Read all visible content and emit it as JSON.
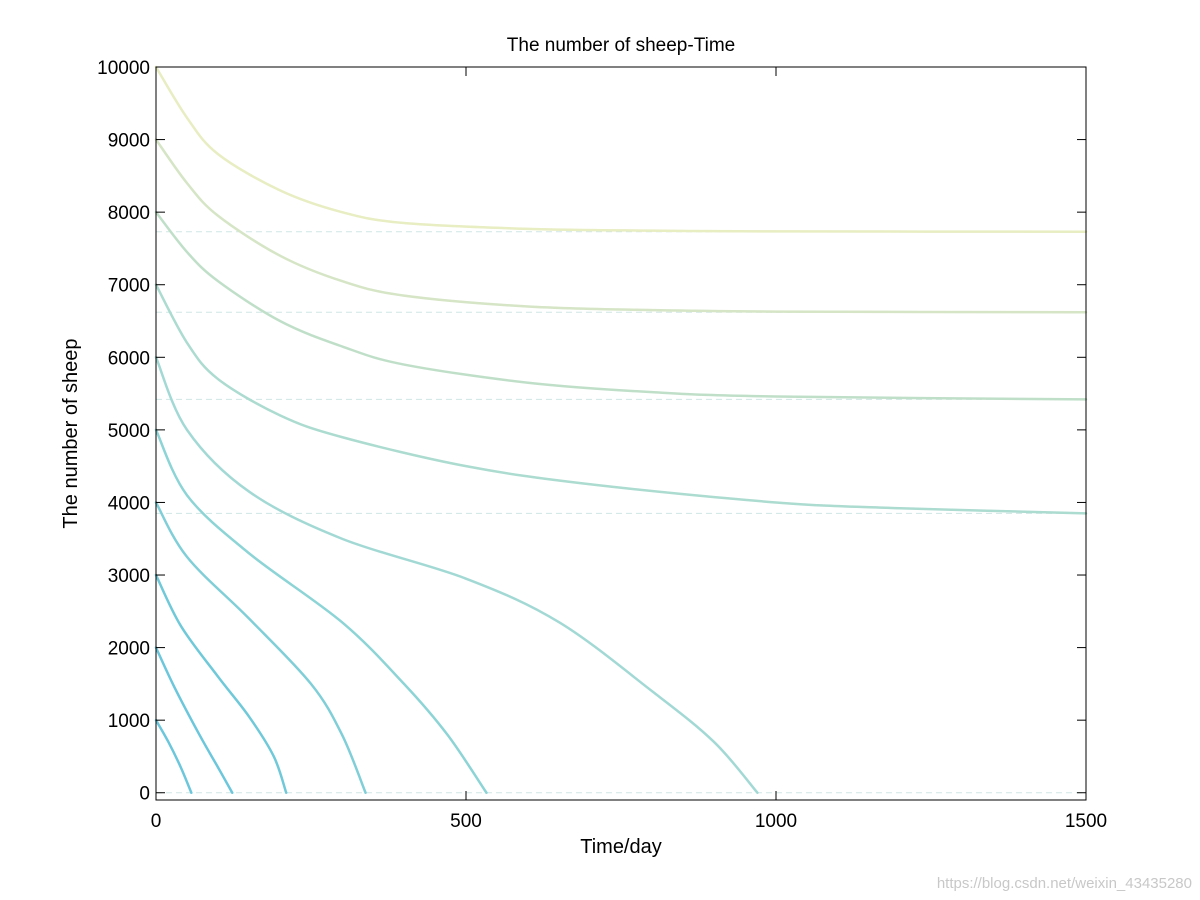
{
  "watermark": "https://blog.csdn.net/weixin_43435280",
  "chart_data": {
    "type": "line",
    "title": "The number of sheep-Time",
    "xlabel": "Time/day",
    "ylabel": "The number of sheep",
    "xlim": [
      0,
      1500
    ],
    "ylim": [
      -100,
      10000
    ],
    "xticks": [
      0,
      500,
      1000,
      1500
    ],
    "yticks": [
      0,
      1000,
      2000,
      3000,
      4000,
      5000,
      6000,
      7000,
      8000,
      9000,
      10000
    ],
    "grid": false,
    "equilibrium_lines": [
      0,
      3850,
      5420,
      6620,
      7730
    ],
    "series": [
      {
        "color": "#6cc7dc",
        "points": [
          [
            0,
            1000
          ],
          [
            20,
            700
          ],
          [
            40,
            350
          ],
          [
            57,
            0
          ]
        ]
      },
      {
        "color": "#6cc7dc",
        "points": [
          [
            0,
            2000
          ],
          [
            30,
            1450
          ],
          [
            70,
            800
          ],
          [
            100,
            350
          ],
          [
            123,
            0
          ]
        ]
      },
      {
        "color": "#70c9d9",
        "points": [
          [
            0,
            3000
          ],
          [
            40,
            2300
          ],
          [
            100,
            1600
          ],
          [
            150,
            1050
          ],
          [
            190,
            500
          ],
          [
            210,
            0
          ]
        ]
      },
      {
        "color": "#80cfd8",
        "points": [
          [
            0,
            4000
          ],
          [
            50,
            3250
          ],
          [
            150,
            2400
          ],
          [
            250,
            1500
          ],
          [
            300,
            800
          ],
          [
            338,
            0
          ]
        ]
      },
      {
        "color": "#8dd4d6",
        "points": [
          [
            0,
            5000
          ],
          [
            50,
            4100
          ],
          [
            150,
            3300
          ],
          [
            300,
            2350
          ],
          [
            400,
            1500
          ],
          [
            470,
            800
          ],
          [
            533,
            0
          ]
        ]
      },
      {
        "color": "#a3d9d5",
        "points": [
          [
            0,
            6000
          ],
          [
            50,
            5000
          ],
          [
            150,
            4150
          ],
          [
            300,
            3500
          ],
          [
            500,
            2950
          ],
          [
            650,
            2350
          ],
          [
            800,
            1400
          ],
          [
            900,
            700
          ],
          [
            970,
            0
          ]
        ]
      },
      {
        "color": "#acdbd0",
        "points": [
          [
            0,
            7000
          ],
          [
            50,
            6200
          ],
          [
            100,
            5700
          ],
          [
            200,
            5200
          ],
          [
            300,
            4900
          ],
          [
            500,
            4500
          ],
          [
            700,
            4250
          ],
          [
            1000,
            4000
          ],
          [
            1200,
            3920
          ],
          [
            1500,
            3850
          ]
        ]
      },
      {
        "color": "#c0dfc9",
        "points": [
          [
            0,
            8000
          ],
          [
            50,
            7450
          ],
          [
            100,
            7050
          ],
          [
            200,
            6500
          ],
          [
            300,
            6150
          ],
          [
            400,
            5900
          ],
          [
            600,
            5650
          ],
          [
            800,
            5520
          ],
          [
            1000,
            5460
          ],
          [
            1500,
            5420
          ]
        ]
      },
      {
        "color": "#d5e5c5",
        "points": [
          [
            0,
            9000
          ],
          [
            50,
            8400
          ],
          [
            100,
            7950
          ],
          [
            200,
            7400
          ],
          [
            300,
            7050
          ],
          [
            400,
            6850
          ],
          [
            600,
            6700
          ],
          [
            800,
            6650
          ],
          [
            1000,
            6630
          ],
          [
            1500,
            6620
          ]
        ]
      },
      {
        "color": "#e8edc2",
        "points": [
          [
            0,
            10000
          ],
          [
            50,
            9300
          ],
          [
            100,
            8800
          ],
          [
            200,
            8300
          ],
          [
            300,
            8000
          ],
          [
            400,
            7850
          ],
          [
            600,
            7770
          ],
          [
            800,
            7745
          ],
          [
            1000,
            7735
          ],
          [
            1500,
            7730
          ]
        ]
      }
    ]
  }
}
